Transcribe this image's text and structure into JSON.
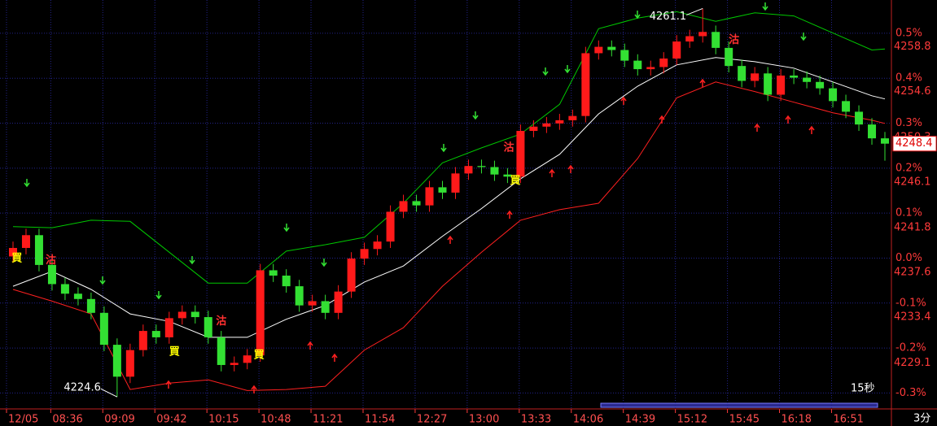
{
  "chart_data": {
    "type": "candlestick",
    "up_color": "#ff1a1a",
    "down_color": "#33e033",
    "open": [
      4237.8,
      4238.6,
      4239.8,
      4237.0,
      4235.2,
      4234.3,
      4233.8,
      4232.5,
      4229.5,
      4226.5,
      4229.0,
      4230.8,
      4230.2,
      4232.0,
      4232.6,
      4232.1,
      4230.2,
      4227.6,
      4227.8,
      4228.5,
      4236.5,
      4236.0,
      4235.0,
      4233.2,
      4233.6,
      4232.5,
      4234.5,
      4237.6,
      4238.5,
      4239.2,
      4242.0,
      4243.0,
      4242.6,
      4244.3,
      4243.8,
      4245.6,
      4246.3,
      4246.2,
      4245.5,
      4245.3,
      4249.6,
      4250.0,
      4250.3,
      4250.6,
      4251.0,
      4256.9,
      4257.5,
      4257.2,
      4256.2,
      4255.4,
      4255.6,
      4256.4,
      4258.0,
      4258.5,
      4258.9,
      4257.4,
      4255.7,
      4254.3,
      4255.0,
      4253.0,
      4254.8,
      4254.6,
      4254.2,
      4253.6,
      4252.4,
      4251.4,
      4250.2,
      4248.9
    ],
    "high": [
      4239.2,
      4240.4,
      4240.4,
      4237.6,
      4235.8,
      4234.9,
      4234.4,
      4233.1,
      4230.1,
      4229.6,
      4231.4,
      4231.4,
      4232.6,
      4233.2,
      4233.2,
      4232.7,
      4230.8,
      4228.4,
      4229.1,
      4237.1,
      4237.1,
      4236.6,
      4235.6,
      4234.2,
      4234.2,
      4235.1,
      4238.2,
      4239.1,
      4239.8,
      4242.6,
      4243.6,
      4243.6,
      4244.9,
      4244.9,
      4246.2,
      4246.9,
      4246.9,
      4246.8,
      4246.1,
      4250.2,
      4250.6,
      4250.9,
      4251.2,
      4251.6,
      4257.5,
      4258.1,
      4258.1,
      4257.8,
      4256.8,
      4256.2,
      4257.0,
      4258.6,
      4259.1,
      4261.1,
      4259.5,
      4258.0,
      4256.3,
      4255.6,
      4255.6,
      4255.4,
      4255.4,
      4255.2,
      4254.8,
      4254.2,
      4253.0,
      4252.0,
      4250.8,
      4249.5
    ],
    "low": [
      4237.2,
      4238.0,
      4236.4,
      4234.6,
      4233.7,
      4233.2,
      4231.9,
      4228.9,
      4224.6,
      4225.9,
      4228.4,
      4229.6,
      4229.6,
      4231.4,
      4231.5,
      4229.6,
      4227.0,
      4227.0,
      4227.2,
      4227.9,
      4235.4,
      4234.4,
      4232.6,
      4232.6,
      4231.9,
      4231.9,
      4233.9,
      4237.0,
      4237.9,
      4238.6,
      4241.4,
      4242.0,
      4242.0,
      4243.2,
      4243.2,
      4245.0,
      4245.6,
      4244.9,
      4244.7,
      4244.7,
      4249.0,
      4249.4,
      4249.7,
      4250.0,
      4250.4,
      4256.3,
      4256.6,
      4255.6,
      4254.8,
      4254.8,
      4255.0,
      4255.8,
      4257.4,
      4257.9,
      4256.8,
      4255.1,
      4253.7,
      4253.7,
      4252.4,
      4252.4,
      4254.0,
      4253.6,
      4253.0,
      4251.8,
      4250.8,
      4249.6,
      4248.3,
      4246.8
    ],
    "close": [
      4238.6,
      4239.8,
      4237.0,
      4235.2,
      4234.3,
      4233.8,
      4232.5,
      4229.5,
      4226.5,
      4229.0,
      4230.8,
      4230.2,
      4232.0,
      4232.6,
      4232.1,
      4230.2,
      4227.6,
      4227.8,
      4228.5,
      4236.5,
      4236.0,
      4235.0,
      4233.2,
      4233.6,
      4232.5,
      4234.5,
      4237.6,
      4238.5,
      4239.2,
      4242.0,
      4243.0,
      4242.6,
      4244.3,
      4243.8,
      4245.6,
      4246.3,
      4246.2,
      4245.5,
      4245.3,
      4249.6,
      4250.0,
      4250.3,
      4250.6,
      4251.0,
      4256.9,
      4257.5,
      4257.2,
      4256.2,
      4255.4,
      4255.6,
      4256.4,
      4258.0,
      4258.5,
      4258.9,
      4257.4,
      4255.7,
      4254.3,
      4255.0,
      4253.0,
      4254.8,
      4254.6,
      4254.2,
      4253.6,
      4252.4,
      4251.4,
      4250.2,
      4248.9,
      4248.4
    ],
    "lines": {
      "x": [
        0,
        3,
        6,
        9,
        12,
        15,
        18,
        21,
        24,
        27,
        30,
        33,
        36,
        39,
        42,
        45,
        48,
        51,
        54,
        57,
        60,
        63,
        66,
        67
      ],
      "series": [
        {
          "color": "#00c800",
          "values": [
            4240.6,
            4240.5,
            4241.2,
            4241.1,
            4238.2,
            4235.3,
            4235.3,
            4238.3,
            4238.9,
            4239.6,
            4242.8,
            4246.6,
            4248.0,
            4249.3,
            4252.1,
            4259.2,
            4260.2,
            4260.8,
            4259.9,
            4260.7,
            4260.4,
            4258.8,
            4257.2,
            4257.3
          ]
        },
        {
          "color": "#ffffff",
          "values": [
            4235.0,
            4236.4,
            4234.7,
            4232.4,
            4231.7,
            4230.2,
            4230.2,
            4231.9,
            4233.2,
            4235.4,
            4236.9,
            4239.7,
            4242.3,
            4245.1,
            4247.4,
            4251.2,
            4253.8,
            4255.8,
            4256.5,
            4256.1,
            4255.5,
            4254.2,
            4252.9,
            4252.6
          ]
        },
        {
          "color": "#ff2020",
          "values": [
            4234.7,
            4233.6,
            4232.4,
            4225.3,
            4225.9,
            4226.2,
            4225.2,
            4225.3,
            4225.6,
            4229.0,
            4231.1,
            4235.0,
            4238.2,
            4241.2,
            4242.2,
            4242.8,
            4247.0,
            4252.7,
            4254.2,
            4253.3,
            4252.3,
            4251.3,
            4250.6,
            4250.3
          ]
        }
      ]
    },
    "signals": [
      {
        "text": "買",
        "x": 0.3,
        "y": 4237.6,
        "color": "#ffff00"
      },
      {
        "text": "沽",
        "x": 2.9,
        "y": 4237.4,
        "color": "#ff3030"
      },
      {
        "text": "買",
        "x": 12.4,
        "y": 4228.8,
        "color": "#ffff00"
      },
      {
        "text": "沽",
        "x": 16,
        "y": 4231.7,
        "color": "#ff3030"
      },
      {
        "text": "買",
        "x": 18.9,
        "y": 4228.5,
        "color": "#ffff00"
      },
      {
        "text": "沽",
        "x": 38.1,
        "y": 4248.0,
        "color": "#ff3030"
      },
      {
        "text": "買",
        "x": 38.6,
        "y": 4244.9,
        "color": "#ffff00"
      },
      {
        "text": "沽",
        "x": 55.4,
        "y": 4258.1,
        "color": "#ff3030"
      }
    ],
    "xlim": [
      -1,
      67.5
    ],
    "xticks": [
      {
        "value": -0.5,
        "label": "12/05"
      },
      {
        "value": 2.9,
        "label": "08:36"
      },
      {
        "value": 6.9,
        "label": "09:09"
      },
      {
        "value": 10.9,
        "label": "09:42"
      },
      {
        "value": 14.9,
        "label": "10:15"
      },
      {
        "value": 18.9,
        "label": "10:48"
      },
      {
        "value": 22.9,
        "label": "11:21"
      },
      {
        "value": 26.9,
        "label": "11:54"
      },
      {
        "value": 30.9,
        "label": "12:27"
      },
      {
        "value": 34.9,
        "label": "13:00"
      },
      {
        "value": 38.9,
        "label": "13:33"
      },
      {
        "value": 42.9,
        "label": "14:06"
      },
      {
        "value": 46.9,
        "label": "14:39"
      },
      {
        "value": 50.9,
        "label": "15:12"
      },
      {
        "value": 54.9,
        "label": "15:45"
      },
      {
        "value": 58.9,
        "label": "16:18"
      },
      {
        "value": 62.9,
        "label": "16:51"
      }
    ],
    "ylim": [
      4223.7,
      4261.9
    ],
    "yticks": [
      4258.8,
      4254.6,
      4250.3,
      4246.1,
      4241.8,
      4237.6,
      4233.4,
      4229.1
    ],
    "y2lim": [
      -0.33,
      0.574
    ],
    "y2ticks": [
      {
        "value": 0.5,
        "label": "0.5%"
      },
      {
        "value": 0.4,
        "label": "0.4%"
      },
      {
        "value": 0.3,
        "label": "0.3%"
      },
      {
        "value": 0.2,
        "label": "0.2%"
      },
      {
        "value": 0.1,
        "label": "0.1%"
      },
      {
        "value": 0.0,
        "label": "0.0%"
      },
      {
        "value": -0.1,
        "label": "-0.1%"
      },
      {
        "value": -0.2,
        "label": "-0.2%"
      },
      {
        "value": -0.3,
        "label": "-0.3%"
      }
    ],
    "grid": true,
    "period": "3分",
    "refresh": "15秒"
  }
}
